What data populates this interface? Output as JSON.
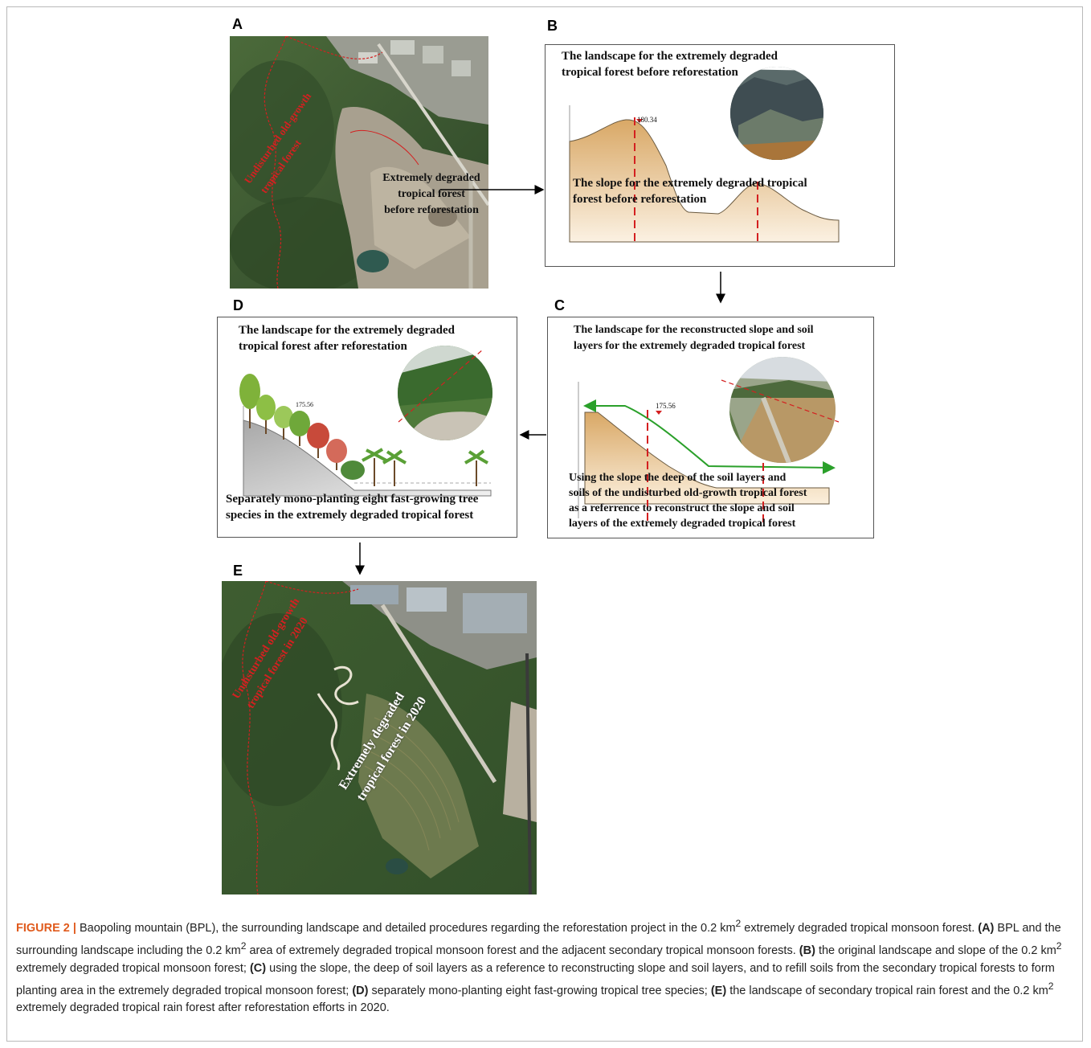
{
  "figure": {
    "label": "FIGURE 2 |",
    "caption_parts": {
      "intro": " Baopoling mountain (BPL), the surrounding landscape and detailed procedures regarding the reforestation project in the 0.2 km",
      "intro2": " extremely degraded tropical monsoon forest. ",
      "a_tag": "(A)",
      "a_text": " BPL and the surrounding landscape including the 0.2 km",
      "a_text2": " area of extremely degraded tropical monsoon forest and the adjacent secondary tropical monsoon forests. ",
      "b_tag": "(B)",
      "b_text": " the original landscape and slope of the 0.2 km",
      "b_text2": " extremely degraded tropical monsoon forest; ",
      "c_tag": "(C)",
      "c_text": " using the slope, the deep of soil layers as a reference to reconstructing slope and soil layers, and to refill soils from the secondary tropical forests to form planting area in the extremely degraded tropical monsoon forest; ",
      "d_tag": "(D)",
      "d_text": " separately mono-planting eight fast-growing tropical tree species; ",
      "e_tag": "(E)",
      "e_text": " the landscape of secondary tropical rain forest and the 0.2 km",
      "e_text2": " extremely degraded tropical rain forest after reforestation efforts in 2020.",
      "sup": "2"
    }
  },
  "panels": {
    "a": {
      "label": "A",
      "red_label_line1": "Undisturbed old-growth",
      "red_label_line2": "tropical forest",
      "callout_line1": "Extremely degraded",
      "callout_line2": "tropical forest",
      "callout_line3": "before reforestation"
    },
    "b": {
      "label": "B",
      "title_line1": "The landscape for the extremely degraded",
      "title_line2": "tropical forest before reforestation",
      "slope_line1": "The slope for the extremely degraded tropical",
      "slope_line2": "forest before reforestation",
      "elevation": "180.34"
    },
    "c": {
      "label": "C",
      "title_line1": "The landscape for the reconstructed slope and soil",
      "title_line2": "layers for the extremely degraded tropical forest",
      "elevation": "175.56",
      "body_line1": "Using the slope the deep of the soil layers and",
      "body_line2": "soils of the undisturbed old-growth tropical forest",
      "body_line3": "as a referrence to reconstruct the slope and soil",
      "body_line4": "layers of the extremely degraded tropical forest"
    },
    "d": {
      "label": "D",
      "title_line1": "The landscape for the extremely degraded",
      "title_line2": "tropical forest after reforestation",
      "elevation": "175.56",
      "body_line1": "Separately mono-planting eight fast-growing tree",
      "body_line2": "species in the extremely degraded tropical forest"
    },
    "e": {
      "label": "E",
      "red_label_line1": "Undisturbed old-growth",
      "red_label_line2": "tropical forest in 2020",
      "white_label_line1": "Extremely degraded",
      "white_label_line2": "tropical forest in 2020"
    }
  },
  "colors": {
    "forest": "#3d5a2e",
    "soil": "#d9b27c",
    "boundary_red": "#d42020",
    "arrow_green": "#2aa02a",
    "caption_lead": "#e05a1c"
  }
}
